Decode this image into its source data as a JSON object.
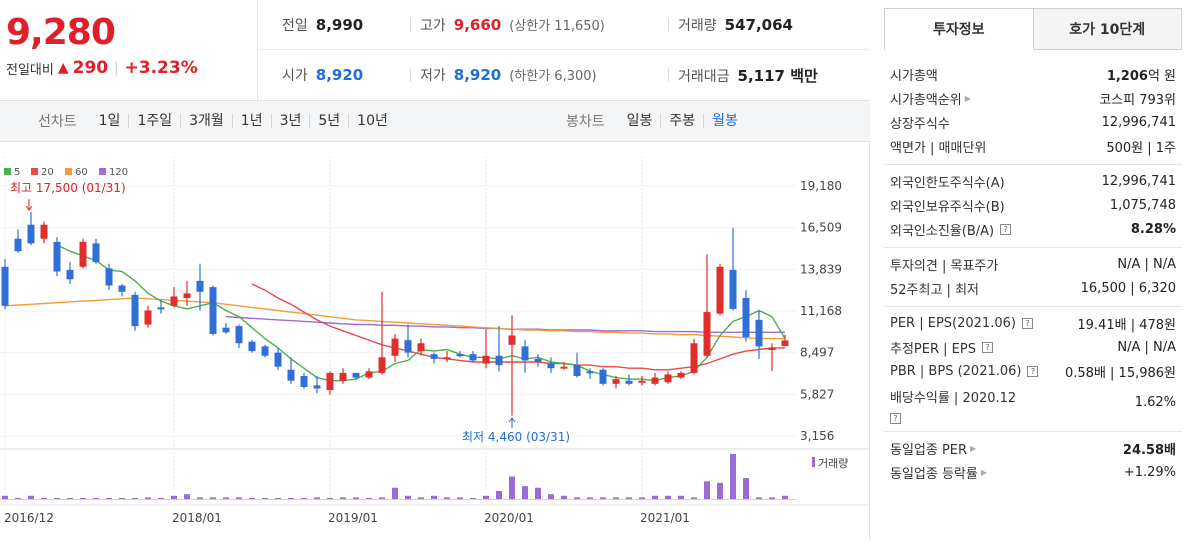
{
  "price": {
    "current": "9,280",
    "change_label": "전일대비",
    "change_arrow": "▲",
    "change_value": "290",
    "change_pct": "+3.23%"
  },
  "stats": {
    "prev_label": "전일",
    "prev_value": "8,990",
    "high_label": "고가",
    "high_value": "9,660",
    "upper_limit": "(상한가 11,650)",
    "volume_label": "거래량",
    "volume_value": "547,064",
    "open_label": "시가",
    "open_value": "8,920",
    "low_label": "저가",
    "low_value": "8,920",
    "lower_limit": "(하한가 6,300)",
    "amount_label": "거래대금",
    "amount_value": "5,117 백만"
  },
  "toolbar": {
    "line_label": "선차트",
    "line_items": [
      "1일",
      "1주일",
      "3개월",
      "1년",
      "3년",
      "5년",
      "10년"
    ],
    "candle_label": "봉차트",
    "candle_items": [
      "일봉",
      "주봉",
      "월봉"
    ]
  },
  "chart_data": {
    "type": "candlestick",
    "legend": [
      {
        "name": "5",
        "color": "#4caf50"
      },
      {
        "name": "20",
        "color": "#e84a4a"
      },
      {
        "name": "60",
        "color": "#f39c3c"
      },
      {
        "name": "120",
        "color": "#9b6bd6"
      }
    ],
    "y_ticks": [
      "19,180",
      "16,509",
      "13,839",
      "11,168",
      "8,497",
      "5,827",
      "3,156"
    ],
    "y_tick_values": [
      19180,
      16509,
      13839,
      11168,
      8497,
      5827,
      3156
    ],
    "x_labels": [
      "2016/12",
      "2018/01",
      "2019/01",
      "2020/01",
      "2021/01"
    ],
    "x_label_index": [
      0,
      13,
      25,
      37,
      49
    ],
    "high_annotation": "최고 17,500 (01/31)",
    "low_annotation": "최저 4,460 (03/31)",
    "volume_label": "거래량",
    "candles": [
      [
        14000,
        11500,
        14500,
        11300
      ],
      [
        15800,
        15000,
        16400,
        14900
      ],
      [
        16700,
        15500,
        17500,
        15400
      ],
      [
        15800,
        16700,
        16900,
        15500
      ],
      [
        15600,
        13700,
        15900,
        13400
      ],
      [
        13800,
        13200,
        14300,
        12900
      ],
      [
        14000,
        15600,
        15800,
        13900
      ],
      [
        15500,
        14300,
        15800,
        14200
      ],
      [
        13900,
        12800,
        14200,
        12500
      ],
      [
        12800,
        12400,
        12900,
        12100
      ],
      [
        12200,
        10200,
        12400,
        9900
      ],
      [
        10300,
        11200,
        11500,
        10100
      ],
      [
        11400,
        11300,
        11900,
        11000
      ],
      [
        11500,
        12100,
        12700,
        11400
      ],
      [
        12000,
        12300,
        13100,
        11500
      ],
      [
        13100,
        12400,
        14200,
        11200
      ],
      [
        12700,
        9700,
        12800,
        9600
      ],
      [
        10100,
        9800,
        10400,
        9700
      ],
      [
        10200,
        9100,
        10300,
        8800
      ],
      [
        9200,
        8600,
        9300,
        8500
      ],
      [
        8900,
        8300,
        9000,
        8200
      ],
      [
        8500,
        7600,
        8800,
        7400
      ],
      [
        7400,
        6700,
        8200,
        6500
      ],
      [
        7000,
        6300,
        7200,
        6200
      ],
      [
        6400,
        6200,
        7000,
        5900
      ],
      [
        6100,
        7200,
        7300,
        5800
      ],
      [
        6700,
        7200,
        7500,
        6500
      ],
      [
        7200,
        6900,
        7200,
        6800
      ],
      [
        6900,
        7300,
        7500,
        6800
      ],
      [
        7200,
        8200,
        12400,
        7100
      ],
      [
        8300,
        9400,
        9700,
        7900
      ],
      [
        9300,
        8500,
        10300,
        8200
      ],
      [
        8600,
        9100,
        9400,
        8300
      ],
      [
        8400,
        8100,
        8500,
        7800
      ],
      [
        8100,
        8200,
        8600,
        7900
      ],
      [
        8400,
        8300,
        8600,
        8200
      ],
      [
        8400,
        8000,
        8600,
        7900
      ],
      [
        7800,
        8300,
        10000,
        7500
      ],
      [
        8300,
        7700,
        10200,
        7300
      ],
      [
        9000,
        9600,
        10900,
        4460
      ],
      [
        8900,
        8000,
        9300,
        7200
      ],
      [
        8100,
        7900,
        8400,
        7600
      ],
      [
        7800,
        7500,
        8200,
        7200
      ],
      [
        7500,
        7600,
        7900,
        7400
      ],
      [
        7700,
        7000,
        8500,
        6900
      ],
      [
        7300,
        7200,
        7500,
        6800
      ],
      [
        7400,
        6500,
        7500,
        6400
      ],
      [
        6500,
        6800,
        7000,
        6200
      ],
      [
        6700,
        6500,
        7100,
        6400
      ],
      [
        6600,
        6700,
        7000,
        6400
      ],
      [
        6500,
        6900,
        7200,
        6400
      ],
      [
        6600,
        7100,
        7300,
        6500
      ],
      [
        6900,
        7200,
        7300,
        6800
      ],
      [
        7200,
        9100,
        9400,
        7100
      ],
      [
        8300,
        11100,
        14800,
        8200
      ],
      [
        11000,
        14000,
        14200,
        10900
      ],
      [
        13800,
        11300,
        16500,
        11200
      ],
      [
        12000,
        9500,
        12500,
        9200
      ],
      [
        10600,
        8900,
        11200,
        8100
      ],
      [
        8700,
        8800,
        9100,
        7300
      ],
      [
        8920,
        9280,
        9660,
        8920
      ]
    ],
    "volumes": [
      2,
      0,
      2,
      0,
      0,
      0,
      0,
      0,
      0,
      0,
      0,
      1,
      0,
      2,
      3,
      1,
      1,
      1,
      1,
      0,
      0,
      0,
      0,
      0,
      1,
      0,
      1,
      1,
      0,
      1,
      7,
      2,
      1,
      2,
      1,
      1,
      0,
      2,
      5,
      14,
      8,
      7,
      3,
      2,
      1,
      1,
      1,
      1,
      1,
      1,
      2,
      2,
      2,
      1,
      11,
      10,
      28,
      13,
      1,
      1,
      2
    ],
    "ma5": [
      null,
      null,
      null,
      null,
      15400,
      15000,
      14700,
      14400,
      13800,
      13700,
      13100,
      12300,
      11800,
      11500,
      11300,
      11500,
      11700,
      11200,
      10800,
      10100,
      9400,
      8800,
      8100,
      7500,
      6900,
      6700,
      6700,
      6800,
      7200,
      7300,
      7800,
      8000,
      8700,
      8600,
      8700,
      8400,
      8200,
      8200,
      8100,
      8300,
      8100,
      8200,
      7900,
      7800,
      7700,
      7300,
      7100,
      6900,
      6800,
      6800,
      6700,
      6900,
      7000,
      7300,
      8200,
      9600,
      10500,
      10800,
      11200,
      10800,
      9400
    ],
    "ma20": [
      null,
      null,
      null,
      null,
      null,
      null,
      null,
      null,
      null,
      null,
      null,
      null,
      null,
      null,
      null,
      null,
      null,
      null,
      null,
      12900,
      12500,
      12000,
      11600,
      11100,
      10600,
      10200,
      9900,
      9600,
      9300,
      9000,
      8800,
      8600,
      8400,
      8200,
      8100,
      8000,
      7900,
      7900,
      7900,
      7900,
      7900,
      7900,
      7800,
      7800,
      7700,
      7700,
      7600,
      7600,
      7500,
      7500,
      7400,
      7400,
      7500,
      7600,
      7800,
      8100,
      8400,
      8600,
      8700,
      8800,
      8800
    ],
    "ma60": [
      11500,
      11550,
      11600,
      11650,
      11700,
      11750,
      11800,
      11850,
      11900,
      11950,
      12000,
      11950,
      11900,
      11850,
      11800,
      11750,
      11700,
      11600,
      11500,
      11400,
      11300,
      11200,
      11100,
      11000,
      10900,
      10800,
      10700,
      10600,
      10550,
      10500,
      10450,
      10400,
      10350,
      10300,
      10250,
      10200,
      10150,
      10100,
      10050,
      10000,
      9950,
      9950,
      9900,
      9900,
      9850,
      9850,
      9800,
      9800,
      9750,
      9750,
      9700,
      9700,
      9650,
      9650,
      9600,
      9550,
      9500,
      9450,
      9400,
      9400,
      9400
    ],
    "ma120": [
      null,
      null,
      null,
      null,
      null,
      null,
      null,
      null,
      null,
      null,
      null,
      null,
      null,
      null,
      null,
      null,
      null,
      10800,
      10750,
      10700,
      10650,
      10600,
      10550,
      10500,
      10450,
      10400,
      10350,
      10300,
      10300,
      10250,
      10250,
      10200,
      10200,
      10150,
      10150,
      10100,
      10100,
      10050,
      10050,
      10000,
      10000,
      10000,
      9950,
      9950,
      9950,
      9950,
      9900,
      9900,
      9900,
      9900,
      9850,
      9850,
      9850,
      9850,
      9800,
      9800,
      9800,
      9800,
      9800,
      9800,
      9800
    ]
  },
  "right_panel": {
    "tab_invest": "투자정보",
    "tab_order": "호가 10단계",
    "s1": [
      {
        "k": "시가총액",
        "v1": "1,206",
        "v2": "억 원",
        "bold": true
      },
      {
        "k": "시가총액순위",
        "v1": "코스피 793위",
        "tri": true
      },
      {
        "k": "상장주식수",
        "v1": "12,996,741"
      },
      {
        "k": "액면가 | 매매단위",
        "v1": "500원 | 1주"
      }
    ],
    "s2": [
      {
        "k": "외국인한도주식수(A)",
        "v1": "12,996,741"
      },
      {
        "k": "외국인보유주식수(B)",
        "v1": "1,075,748"
      },
      {
        "k": "외국인소진율(B/A)",
        "v1": "8.28%",
        "bold": true,
        "q": true
      }
    ],
    "s3": [
      {
        "k": "투자의견 | 목표주가",
        "v1": "N/A | N/A"
      },
      {
        "k": "52주최고 | 최저",
        "v1": "16,500 | 6,320"
      }
    ],
    "s4": [
      {
        "k": "PER | EPS(2021.06)",
        "v1": "19.41배 | 478원",
        "q": true
      },
      {
        "k": "추정PER | EPS",
        "v1": "N/A | N/A",
        "q": true
      },
      {
        "k": "PBR | BPS (2021.06)",
        "v1": "0.58배 | 15,986원",
        "q": true
      }
    ],
    "dividend_label": "배당수익률 | 2020.12",
    "dividend_value": "1.62%",
    "s5": [
      {
        "k": "동일업종 PER",
        "v1": "24.58배",
        "bold": true,
        "tri": true
      },
      {
        "k": "동일업종 등락률",
        "v1": "+1.29%",
        "red": true,
        "tri": true
      }
    ]
  }
}
